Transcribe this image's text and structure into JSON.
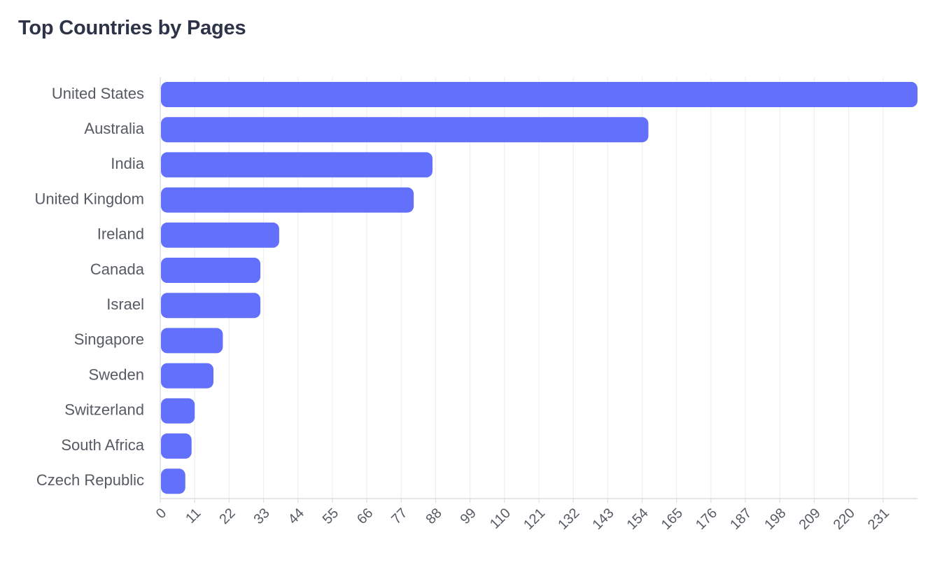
{
  "chart_data": {
    "type": "bar",
    "orientation": "horizontal",
    "title": "Top Countries by Pages",
    "categories": [
      "United States",
      "Australia",
      "India",
      "United Kingdom",
      "Ireland",
      "Canada",
      "Israel",
      "Singapore",
      "Sweden",
      "Switzerland",
      "South Africa",
      "Czech Republic"
    ],
    "values": [
      242,
      156,
      87,
      81,
      38,
      32,
      32,
      20,
      17,
      11,
      10,
      8
    ],
    "xticks": [
      0,
      11,
      22,
      33,
      44,
      55,
      66,
      77,
      88,
      99,
      110,
      121,
      132,
      143,
      154,
      165,
      176,
      187,
      198,
      209,
      220,
      231
    ],
    "xlim": [
      0,
      242
    ],
    "xlabel": "",
    "ylabel": "",
    "grid": "vertical",
    "bar_color": "#6270fc",
    "grid_color": "#eeeff2",
    "axis_color": "#dcdee3"
  }
}
